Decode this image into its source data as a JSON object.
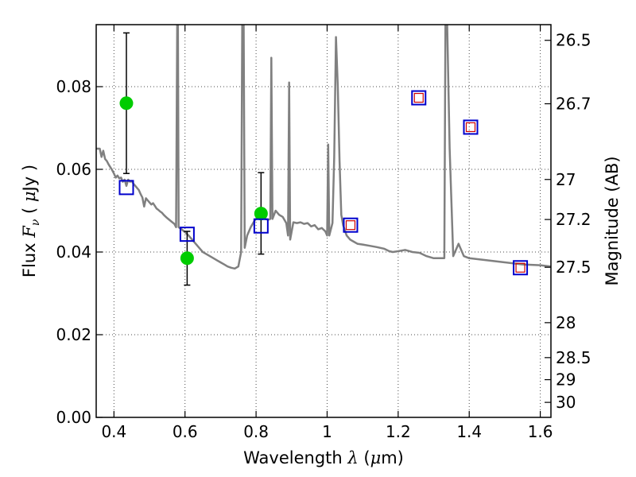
{
  "chart_data": {
    "type": "line",
    "xlabel_parts": [
      "Wavelength  ",
      "λ",
      " (",
      "μ",
      "m)"
    ],
    "ylabel_parts": [
      "Flux  ",
      "F",
      "ν",
      "  ( ",
      "μ",
      "Jy )"
    ],
    "y2label": "Magnitude (AB)",
    "xlim": [
      0.35,
      1.63
    ],
    "ylim": [
      0.0,
      0.095
    ],
    "grid": true,
    "x_ticks": [
      {
        "v": 0.4,
        "label": "0.4"
      },
      {
        "v": 0.6,
        "label": "0.6"
      },
      {
        "v": 0.8,
        "label": "0.8"
      },
      {
        "v": 1.0,
        "label": "1"
      },
      {
        "v": 1.2,
        "label": "1.2"
      },
      {
        "v": 1.4,
        "label": "1.4"
      },
      {
        "v": 1.6,
        "label": "1.6"
      }
    ],
    "y_ticks": [
      {
        "v": 0.0,
        "label": "0.00"
      },
      {
        "v": 0.02,
        "label": "0.02"
      },
      {
        "v": 0.04,
        "label": "0.04"
      },
      {
        "v": 0.06,
        "label": "0.06"
      },
      {
        "v": 0.08,
        "label": "0.08"
      }
    ],
    "y2_ticks": [
      {
        "mag": 26.5,
        "label": "26.5"
      },
      {
        "mag": 26.7,
        "label": "26.7"
      },
      {
        "mag": 27.0,
        "label": "27"
      },
      {
        "mag": 27.2,
        "label": "27.2"
      },
      {
        "mag": 27.5,
        "label": "27.5"
      },
      {
        "mag": 28.0,
        "label": "28"
      },
      {
        "mag": 28.5,
        "label": "28.5"
      },
      {
        "mag": 29.0,
        "label": "29"
      },
      {
        "mag": 30.0,
        "label": "30"
      }
    ],
    "series": [
      {
        "kind": "spectrum",
        "color": "#808080",
        "points": [
          [
            0.35,
            0.065
          ],
          [
            0.36,
            0.065
          ],
          [
            0.365,
            0.063
          ],
          [
            0.37,
            0.0645
          ],
          [
            0.375,
            0.0625
          ],
          [
            0.38,
            0.062
          ],
          [
            0.385,
            0.0612
          ],
          [
            0.39,
            0.0605
          ],
          [
            0.395,
            0.0598
          ],
          [
            0.4,
            0.059
          ],
          [
            0.405,
            0.058
          ],
          [
            0.41,
            0.0585
          ],
          [
            0.415,
            0.0578
          ],
          [
            0.42,
            0.058
          ],
          [
            0.425,
            0.057
          ],
          [
            0.43,
            0.0575
          ],
          [
            0.435,
            0.056
          ],
          [
            0.44,
            0.0575
          ],
          [
            0.445,
            0.057
          ],
          [
            0.45,
            0.0572
          ],
          [
            0.455,
            0.0565
          ],
          [
            0.46,
            0.056
          ],
          [
            0.465,
            0.0555
          ],
          [
            0.47,
            0.055
          ],
          [
            0.475,
            0.054
          ],
          [
            0.48,
            0.0532
          ],
          [
            0.485,
            0.051
          ],
          [
            0.49,
            0.053
          ],
          [
            0.495,
            0.0525
          ],
          [
            0.5,
            0.052
          ],
          [
            0.505,
            0.0515
          ],
          [
            0.51,
            0.0518
          ],
          [
            0.515,
            0.0512
          ],
          [
            0.52,
            0.0505
          ],
          [
            0.525,
            0.0502
          ],
          [
            0.53,
            0.0498
          ],
          [
            0.535,
            0.0495
          ],
          [
            0.54,
            0.049
          ],
          [
            0.545,
            0.0486
          ],
          [
            0.55,
            0.0482
          ],
          [
            0.56,
            0.0475
          ],
          [
            0.57,
            0.0468
          ],
          [
            0.575,
            0.046
          ],
          [
            0.578,
            0.095
          ],
          [
            0.58,
            0.095
          ],
          [
            0.582,
            0.046
          ],
          [
            0.59,
            0.0455
          ],
          [
            0.6,
            0.0448
          ],
          [
            0.61,
            0.044
          ],
          [
            0.62,
            0.043
          ],
          [
            0.63,
            0.042
          ],
          [
            0.64,
            0.041
          ],
          [
            0.65,
            0.04
          ],
          [
            0.66,
            0.0395
          ],
          [
            0.67,
            0.039
          ],
          [
            0.68,
            0.0385
          ],
          [
            0.69,
            0.038
          ],
          [
            0.7,
            0.0375
          ],
          [
            0.71,
            0.037
          ],
          [
            0.72,
            0.0365
          ],
          [
            0.73,
            0.0362
          ],
          [
            0.74,
            0.036
          ],
          [
            0.75,
            0.0365
          ],
          [
            0.758,
            0.04
          ],
          [
            0.761,
            0.095
          ],
          [
            0.765,
            0.095
          ],
          [
            0.768,
            0.041
          ],
          [
            0.775,
            0.044
          ],
          [
            0.785,
            0.046
          ],
          [
            0.795,
            0.0475
          ],
          [
            0.805,
            0.0485
          ],
          [
            0.815,
            0.049
          ],
          [
            0.825,
            0.048
          ],
          [
            0.835,
            0.0478
          ],
          [
            0.84,
            0.048
          ],
          [
            0.843,
            0.087
          ],
          [
            0.846,
            0.048
          ],
          [
            0.855,
            0.05
          ],
          [
            0.865,
            0.049
          ],
          [
            0.875,
            0.0485
          ],
          [
            0.885,
            0.047
          ],
          [
            0.89,
            0.044
          ],
          [
            0.893,
            0.081
          ],
          [
            0.896,
            0.043
          ],
          [
            0.905,
            0.0472
          ],
          [
            0.915,
            0.047
          ],
          [
            0.925,
            0.0472
          ],
          [
            0.935,
            0.0468
          ],
          [
            0.945,
            0.047
          ],
          [
            0.955,
            0.0462
          ],
          [
            0.965,
            0.0465
          ],
          [
            0.975,
            0.0455
          ],
          [
            0.985,
            0.0458
          ],
          [
            0.995,
            0.045
          ],
          [
            1.0,
            0.044
          ],
          [
            1.003,
            0.066
          ],
          [
            1.006,
            0.044
          ],
          [
            1.015,
            0.047
          ],
          [
            1.02,
            0.063
          ],
          [
            1.025,
            0.092
          ],
          [
            1.03,
            0.08
          ],
          [
            1.035,
            0.062
          ],
          [
            1.04,
            0.049
          ],
          [
            1.045,
            0.0465
          ],
          [
            1.055,
            0.044
          ],
          [
            1.065,
            0.043
          ],
          [
            1.075,
            0.0425
          ],
          [
            1.085,
            0.042
          ],
          [
            1.1,
            0.0418
          ],
          [
            1.12,
            0.0415
          ],
          [
            1.14,
            0.0412
          ],
          [
            1.16,
            0.0408
          ],
          [
            1.175,
            0.0402
          ],
          [
            1.185,
            0.04
          ],
          [
            1.2,
            0.0402
          ],
          [
            1.22,
            0.0405
          ],
          [
            1.24,
            0.04
          ],
          [
            1.26,
            0.0398
          ],
          [
            1.28,
            0.039
          ],
          [
            1.3,
            0.0385
          ],
          [
            1.32,
            0.0385
          ],
          [
            1.33,
            0.0385
          ],
          [
            1.333,
            0.095
          ],
          [
            1.338,
            0.095
          ],
          [
            1.345,
            0.065
          ],
          [
            1.355,
            0.039
          ],
          [
            1.36,
            0.04
          ],
          [
            1.37,
            0.042
          ],
          [
            1.375,
            0.041
          ],
          [
            1.385,
            0.039
          ],
          [
            1.4,
            0.0385
          ],
          [
            1.45,
            0.038
          ],
          [
            1.5,
            0.0375
          ],
          [
            1.55,
            0.037
          ],
          [
            1.6,
            0.0368
          ],
          [
            1.63,
            0.0365
          ]
        ]
      },
      {
        "kind": "observed",
        "color": "#00cc00",
        "points": [
          {
            "x": 0.435,
            "y": 0.076,
            "ylo": 0.059,
            "yhi": 0.093
          },
          {
            "x": 0.606,
            "y": 0.0385,
            "ylo": 0.032,
            "yhi": 0.045
          },
          {
            "x": 0.814,
            "y": 0.0493,
            "ylo": 0.0395,
            "yhi": 0.0592
          }
        ]
      },
      {
        "kind": "model-photometry",
        "color": "#0000cc",
        "points": [
          {
            "x": 0.435,
            "y": 0.0556
          },
          {
            "x": 0.606,
            "y": 0.0443
          },
          {
            "x": 0.814,
            "y": 0.0463
          },
          {
            "x": 1.066,
            "y": 0.0465
          },
          {
            "x": 1.258,
            "y": 0.0773
          },
          {
            "x": 1.404,
            "y": 0.0702
          },
          {
            "x": 1.544,
            "y": 0.0362
          }
        ]
      },
      {
        "kind": "model-photometry-inner",
        "color": "#cc0000",
        "points": [
          {
            "x": 1.066,
            "y": 0.0465
          },
          {
            "x": 1.258,
            "y": 0.0773
          },
          {
            "x": 1.404,
            "y": 0.0702
          },
          {
            "x": 1.544,
            "y": 0.0362
          }
        ]
      }
    ]
  }
}
